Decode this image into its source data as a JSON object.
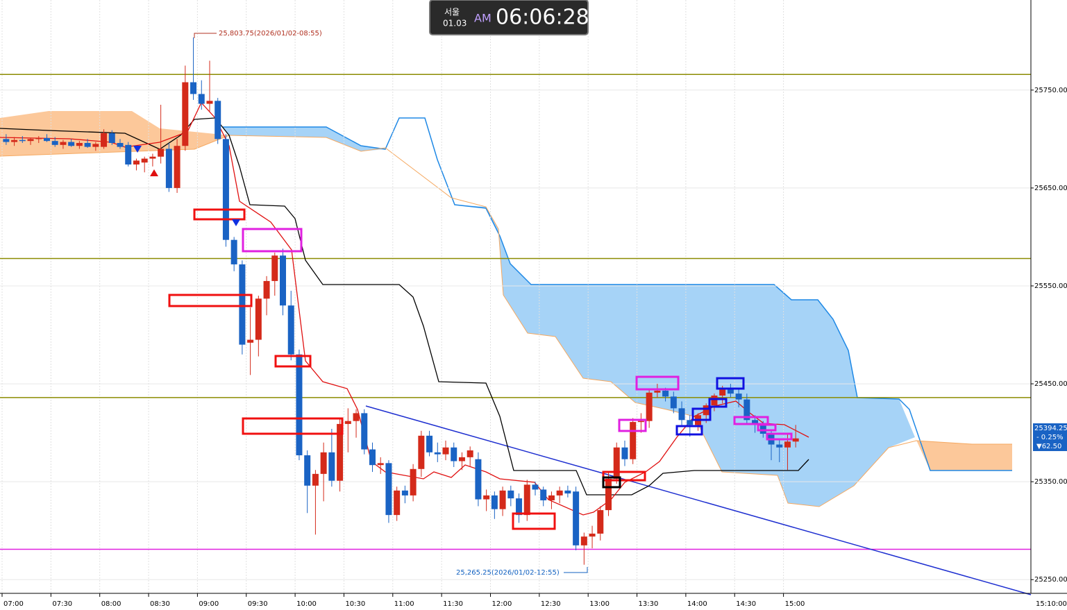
{
  "chart_data": {
    "type": "candlestick",
    "categories": [
      "07:00",
      null,
      null,
      null,
      null,
      null,
      "07:30",
      null,
      null,
      null,
      null,
      null,
      "08:00",
      null,
      null,
      null,
      null,
      null,
      "08:30",
      null,
      null,
      null,
      null,
      null,
      "09:00",
      null,
      null,
      null,
      null,
      null,
      "09:30",
      null,
      null,
      null,
      null,
      null,
      "10:00",
      null,
      null,
      null,
      null,
      null,
      "10:30",
      null,
      null,
      null,
      null,
      null,
      "11:00",
      null,
      null,
      null,
      null,
      null,
      "11:30",
      null,
      null,
      null,
      null,
      null,
      "12:00",
      null,
      null,
      null,
      null,
      null,
      "12:30",
      null,
      null,
      null,
      null,
      null,
      "13:00",
      null,
      null,
      null,
      null,
      null,
      "13:30",
      null,
      null,
      null,
      null,
      null,
      "14:00",
      null,
      null,
      null,
      null,
      null,
      "14:30",
      null,
      null,
      null,
      null,
      null,
      "15:00",
      null
    ],
    "open": [
      25700,
      25697,
      25699,
      25698,
      25700,
      25701,
      25698,
      25694,
      25697,
      25693,
      25696,
      25692,
      25692,
      25706,
      25696,
      25694,
      25674,
      25676,
      25680,
      25682,
      25690,
      25650,
      25693,
      25758,
      25746,
      25736,
      25739,
      25700,
      25597,
      25572,
      25492,
      25495,
      25537,
      25555,
      25581,
      25530,
      25480,
      25377,
      25346,
      25358,
      25380,
      25351,
      25409,
      25412,
      25420,
      25383,
      25367,
      25369,
      25316,
      25341,
      25336,
      25363,
      25397,
      25380,
      25378,
      25385,
      25371,
      25375,
      25373,
      25332,
      25336,
      25322,
      25341,
      25333,
      25316,
      25347,
      25342,
      25331,
      25336,
      25341,
      25340,
      25285,
      25294,
      25297,
      25321,
      25353,
      25385,
      25373,
      25411,
      25412,
      25441,
      25443,
      25437,
      25425,
      25413,
      25408,
      25418,
      25428,
      25438,
      25444,
      25440,
      25434,
      25413,
      25408,
      25399,
      25388,
      25385,
      25391
    ],
    "high": [
      25705,
      25702,
      25703,
      25701,
      25703,
      25705,
      25702,
      25699,
      25700,
      25698,
      25700,
      25697,
      25710,
      25709,
      25700,
      25697,
      25680,
      25682,
      25685,
      25735,
      25696,
      25700,
      25775,
      25803.75,
      25760,
      25780,
      25742,
      25705,
      25600,
      25576,
      25528,
      25540,
      25560,
      25584,
      25588,
      25545,
      25485,
      25382,
      25362,
      25390,
      25404,
      25415,
      25425,
      25424,
      25424,
      25390,
      25375,
      25372,
      25345,
      25346,
      25368,
      25402,
      25402,
      25390,
      25392,
      25390,
      25380,
      25386,
      25380,
      25342,
      25340,
      25345,
      25346,
      25338,
      25352,
      25350,
      25345,
      25340,
      25345,
      25346,
      25345,
      25298,
      25305,
      25325,
      25360,
      25390,
      25392,
      25415,
      25420,
      25445,
      25450,
      25446,
      25442,
      25432,
      25418,
      25420,
      25430,
      25440,
      25448,
      25450,
      25444,
      25440,
      25418,
      25412,
      25403,
      25394,
      25398,
      25408
    ],
    "low": [
      25694,
      25693,
      25696,
      25694,
      25696,
      25697,
      25692,
      25690,
      25692,
      25690,
      25691,
      25688,
      25690,
      25694,
      25690,
      25672,
      25668,
      25666,
      25672,
      25675,
      25646,
      25645,
      25688,
      25740,
      25730,
      25728,
      25695,
      25590,
      25565,
      25480,
      25459,
      25478,
      25520,
      25540,
      25520,
      25474,
      25372,
      25318,
      25296,
      25330,
      25345,
      25340,
      25380,
      25395,
      25378,
      25360,
      25358,
      25308,
      25310,
      25328,
      25330,
      25355,
      25376,
      25370,
      25372,
      25365,
      25362,
      25366,
      25325,
      25320,
      25312,
      25315,
      25325,
      25308,
      25310,
      25336,
      25325,
      25322,
      25328,
      25334,
      25280,
      25265.25,
      25282,
      25290,
      25315,
      25348,
      25366,
      25368,
      25400,
      25405,
      25436,
      25432,
      25420,
      25408,
      25396,
      25402,
      25410,
      25422,
      25430,
      25436,
      25426,
      25410,
      25400,
      25395,
      25372,
      25370,
      25362,
      25385
    ],
    "close": [
      25697,
      25699,
      25698,
      25700,
      25701,
      25698,
      25694,
      25697,
      25693,
      25696,
      25692,
      25695,
      25706,
      25696,
      25692,
      25674,
      25678,
      25680,
      25682,
      25690,
      25650,
      25693,
      25758,
      25746,
      25736,
      25739,
      25700,
      25597,
      25572,
      25490,
      25495,
      25537,
      25555,
      25581,
      25530,
      25480,
      25377,
      25346,
      25358,
      25380,
      25351,
      25409,
      25412,
      25420,
      25383,
      25367,
      25369,
      25316,
      25341,
      25336,
      25363,
      25397,
      25380,
      25378,
      25385,
      25371,
      25375,
      25382,
      25332,
      25336,
      25322,
      25341,
      25333,
      25316,
      25347,
      25342,
      25331,
      25336,
      25341,
      25338,
      25285,
      25294,
      25297,
      25321,
      25353,
      25385,
      25373,
      25411,
      25412,
      25441,
      25443,
      25437,
      25425,
      25413,
      25408,
      25418,
      25428,
      25438,
      25444,
      25440,
      25434,
      25413,
      25408,
      25399,
      25388,
      25385,
      25391,
      25394.25
    ],
    "up_color": "#d42a1a",
    "down_color": "#1a63c4",
    "ylim": [
      25236,
      25842
    ],
    "yticks": [
      {
        "value": 25250,
        "label": "25250.00"
      },
      {
        "value": 25350,
        "label": "25350.00"
      },
      {
        "value": 25450,
        "label": "25450.00"
      },
      {
        "value": 25550,
        "label": "25550.00"
      },
      {
        "value": 25650,
        "label": "25650.00"
      },
      {
        "value": 25750,
        "label": "25750.00"
      }
    ],
    "grid": true,
    "hlines": [
      {
        "value": 25766,
        "color": "#8b8b00"
      },
      {
        "value": 25578,
        "color": "#8b8b00"
      },
      {
        "value": 25436,
        "color": "#8b8b00"
      },
      {
        "value": 25281,
        "color": "#e020e0"
      }
    ],
    "high_label": "25,803.75(2026/01/02-08:55)",
    "low_label": "25,265.25(2026/01/02-12:55)",
    "last_price": {
      "price": "25394.25",
      "change": "- 0.25%",
      "diff": "▼62.50"
    },
    "x_corner": "15:10:00"
  },
  "clock": {
    "city": "서울",
    "date": "01.03",
    "ampm": "AM",
    "time": "06:06:28"
  }
}
